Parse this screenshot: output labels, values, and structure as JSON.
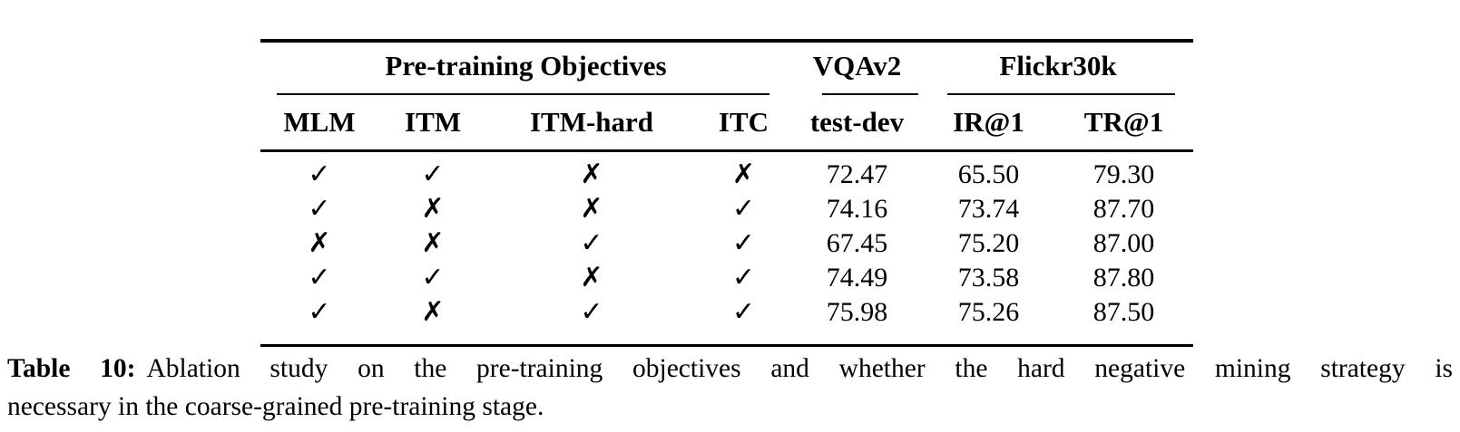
{
  "table": {
    "groups": [
      {
        "label": "Pre-training Objectives"
      },
      {
        "label": "VQAv2"
      },
      {
        "label": "Flickr30k"
      }
    ],
    "columns": [
      "MLM",
      "ITM",
      "ITM-hard",
      "ITC",
      "test-dev",
      "IR@1",
      "TR@1"
    ],
    "check_symbol": "✓",
    "cross_symbol": "✗",
    "rows": [
      {
        "cells": [
          "✓",
          "✓",
          "✗",
          "✗",
          "72.47",
          "65.50",
          "79.30"
        ]
      },
      {
        "cells": [
          "✓",
          "✗",
          "✗",
          "✓",
          "74.16",
          "73.74",
          "87.70"
        ]
      },
      {
        "cells": [
          "✗",
          "✗",
          "✓",
          "✓",
          "67.45",
          "75.20",
          "87.00"
        ]
      },
      {
        "cells": [
          "✓",
          "✓",
          "✗",
          "✓",
          "74.49",
          "73.58",
          "87.80"
        ]
      },
      {
        "cells": [
          "✓",
          "✗",
          "✓",
          "✓",
          "75.98",
          "75.26",
          "87.50"
        ]
      }
    ]
  },
  "caption": {
    "label": "Table 10:",
    "line1": "Ablation study on the pre-training objectives and whether the hard negative mining strategy is",
    "line2": "necessary in the coarse-grained pre-training stage."
  }
}
